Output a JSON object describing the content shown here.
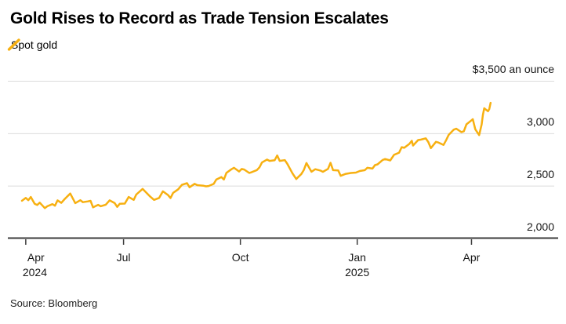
{
  "header": {
    "title": "Gold Rises to Record as Trade Tension Escalates"
  },
  "legend": {
    "label": "Spot gold",
    "marker": "slash-icon"
  },
  "source": {
    "text": "Source: Bloomberg"
  },
  "colors": {
    "line": "#F7B011",
    "grid": "#DBDBDB",
    "axis": "#3B3B3B",
    "text": "#161616",
    "background": "#FFFFFF"
  },
  "chart_data": {
    "type": "line",
    "title": "Gold Rises to Record as Trade Tension Escalates",
    "ylabel": "",
    "xlabel": "",
    "unit_label": "$3,500 an ounce",
    "ylim": [
      2000,
      3500
    ],
    "grid": true,
    "legend_position": "top-left",
    "x_range": [
      "2024-04-12",
      "2025-04-18"
    ],
    "y_ticks": [
      {
        "value": 3500,
        "label": "$3,500 an ounce"
      },
      {
        "value": 3000,
        "label": "3,000"
      },
      {
        "value": 2500,
        "label": "2,500"
      },
      {
        "value": 2000,
        "label": "2,000"
      }
    ],
    "x_ticks": [
      {
        "date": "2024-04-15",
        "label": "Apr",
        "year": "2024"
      },
      {
        "date": "2024-07-01",
        "label": "Jul",
        "year": ""
      },
      {
        "date": "2024-10-01",
        "label": "Oct",
        "year": ""
      },
      {
        "date": "2025-01-01",
        "label": "Jan",
        "year": "2025"
      },
      {
        "date": "2025-04-01",
        "label": "Apr",
        "year": ""
      }
    ],
    "series": [
      {
        "name": "Spot gold",
        "color": "#F7B011",
        "points": [
          [
            "2024-04-12",
            2356
          ],
          [
            "2024-04-15",
            2383
          ],
          [
            "2024-04-17",
            2361
          ],
          [
            "2024-04-19",
            2392
          ],
          [
            "2024-04-22",
            2327
          ],
          [
            "2024-04-24",
            2316
          ],
          [
            "2024-04-26",
            2338
          ],
          [
            "2024-04-30",
            2286
          ],
          [
            "2024-05-02",
            2304
          ],
          [
            "2024-05-06",
            2324
          ],
          [
            "2024-05-08",
            2309
          ],
          [
            "2024-05-10",
            2360
          ],
          [
            "2024-05-13",
            2336
          ],
          [
            "2024-05-16",
            2377
          ],
          [
            "2024-05-20",
            2425
          ],
          [
            "2024-05-22",
            2379
          ],
          [
            "2024-05-24",
            2334
          ],
          [
            "2024-05-28",
            2361
          ],
          [
            "2024-05-30",
            2343
          ],
          [
            "2024-06-03",
            2350
          ],
          [
            "2024-06-05",
            2355
          ],
          [
            "2024-06-07",
            2293
          ],
          [
            "2024-06-11",
            2317
          ],
          [
            "2024-06-13",
            2304
          ],
          [
            "2024-06-17",
            2319
          ],
          [
            "2024-06-20",
            2360
          ],
          [
            "2024-06-24",
            2334
          ],
          [
            "2024-06-26",
            2298
          ],
          [
            "2024-06-28",
            2327
          ],
          [
            "2024-07-02",
            2329
          ],
          [
            "2024-07-05",
            2392
          ],
          [
            "2024-07-09",
            2364
          ],
          [
            "2024-07-11",
            2415
          ],
          [
            "2024-07-16",
            2469
          ],
          [
            "2024-07-18",
            2445
          ],
          [
            "2024-07-22",
            2396
          ],
          [
            "2024-07-25",
            2364
          ],
          [
            "2024-07-29",
            2383
          ],
          [
            "2024-08-01",
            2446
          ],
          [
            "2024-08-05",
            2411
          ],
          [
            "2024-08-07",
            2382
          ],
          [
            "2024-08-09",
            2431
          ],
          [
            "2024-08-13",
            2465
          ],
          [
            "2024-08-16",
            2508
          ],
          [
            "2024-08-20",
            2524
          ],
          [
            "2024-08-22",
            2485
          ],
          [
            "2024-08-26",
            2518
          ],
          [
            "2024-08-28",
            2505
          ],
          [
            "2024-09-02",
            2499
          ],
          [
            "2024-09-04",
            2494
          ],
          [
            "2024-09-06",
            2497
          ],
          [
            "2024-09-10",
            2517
          ],
          [
            "2024-09-12",
            2558
          ],
          [
            "2024-09-16",
            2582
          ],
          [
            "2024-09-18",
            2559
          ],
          [
            "2024-09-20",
            2622
          ],
          [
            "2024-09-24",
            2657
          ],
          [
            "2024-09-26",
            2670
          ],
          [
            "2024-09-30",
            2635
          ],
          [
            "2024-10-02",
            2659
          ],
          [
            "2024-10-04",
            2654
          ],
          [
            "2024-10-08",
            2621
          ],
          [
            "2024-10-10",
            2629
          ],
          [
            "2024-10-14",
            2649
          ],
          [
            "2024-10-16",
            2674
          ],
          [
            "2024-10-18",
            2721
          ],
          [
            "2024-10-22",
            2749
          ],
          [
            "2024-10-24",
            2736
          ],
          [
            "2024-10-28",
            2743
          ],
          [
            "2024-10-30",
            2788
          ],
          [
            "2024-11-01",
            2736
          ],
          [
            "2024-11-05",
            2744
          ],
          [
            "2024-11-07",
            2707
          ],
          [
            "2024-11-11",
            2619
          ],
          [
            "2024-11-14",
            2563
          ],
          [
            "2024-11-18",
            2611
          ],
          [
            "2024-11-20",
            2650
          ],
          [
            "2024-11-22",
            2716
          ],
          [
            "2024-11-26",
            2633
          ],
          [
            "2024-11-29",
            2657
          ],
          [
            "2024-12-03",
            2644
          ],
          [
            "2024-12-05",
            2632
          ],
          [
            "2024-12-09",
            2660
          ],
          [
            "2024-12-11",
            2718
          ],
          [
            "2024-12-13",
            2648
          ],
          [
            "2024-12-17",
            2646
          ],
          [
            "2024-12-19",
            2594
          ],
          [
            "2024-12-23",
            2613
          ],
          [
            "2024-12-27",
            2621
          ],
          [
            "2024-12-31",
            2625
          ],
          [
            "2025-01-03",
            2640
          ],
          [
            "2025-01-07",
            2648
          ],
          [
            "2025-01-09",
            2670
          ],
          [
            "2025-01-13",
            2663
          ],
          [
            "2025-01-15",
            2696
          ],
          [
            "2025-01-17",
            2703
          ],
          [
            "2025-01-21",
            2745
          ],
          [
            "2025-01-23",
            2754
          ],
          [
            "2025-01-27",
            2741
          ],
          [
            "2025-01-30",
            2794
          ],
          [
            "2025-02-03",
            2815
          ],
          [
            "2025-02-05",
            2867
          ],
          [
            "2025-02-07",
            2861
          ],
          [
            "2025-02-11",
            2898
          ],
          [
            "2025-02-13",
            2928
          ],
          [
            "2025-02-14",
            2883
          ],
          [
            "2025-02-18",
            2935
          ],
          [
            "2025-02-20",
            2939
          ],
          [
            "2025-02-24",
            2951
          ],
          [
            "2025-02-26",
            2916
          ],
          [
            "2025-02-28",
            2858
          ],
          [
            "2025-03-04",
            2918
          ],
          [
            "2025-03-06",
            2911
          ],
          [
            "2025-03-10",
            2889
          ],
          [
            "2025-03-12",
            2934
          ],
          [
            "2025-03-14",
            2984
          ],
          [
            "2025-03-18",
            3034
          ],
          [
            "2025-03-20",
            3044
          ],
          [
            "2025-03-24",
            3011
          ],
          [
            "2025-03-26",
            3019
          ],
          [
            "2025-03-28",
            3085
          ],
          [
            "2025-04-01",
            3124
          ],
          [
            "2025-04-02",
            3134
          ],
          [
            "2025-04-04",
            3038
          ],
          [
            "2025-04-07",
            2982
          ],
          [
            "2025-04-09",
            3083
          ],
          [
            "2025-04-10",
            3175
          ],
          [
            "2025-04-11",
            3238
          ],
          [
            "2025-04-14",
            3210
          ],
          [
            "2025-04-15",
            3230
          ],
          [
            "2025-04-16",
            3290
          ]
        ]
      }
    ]
  }
}
